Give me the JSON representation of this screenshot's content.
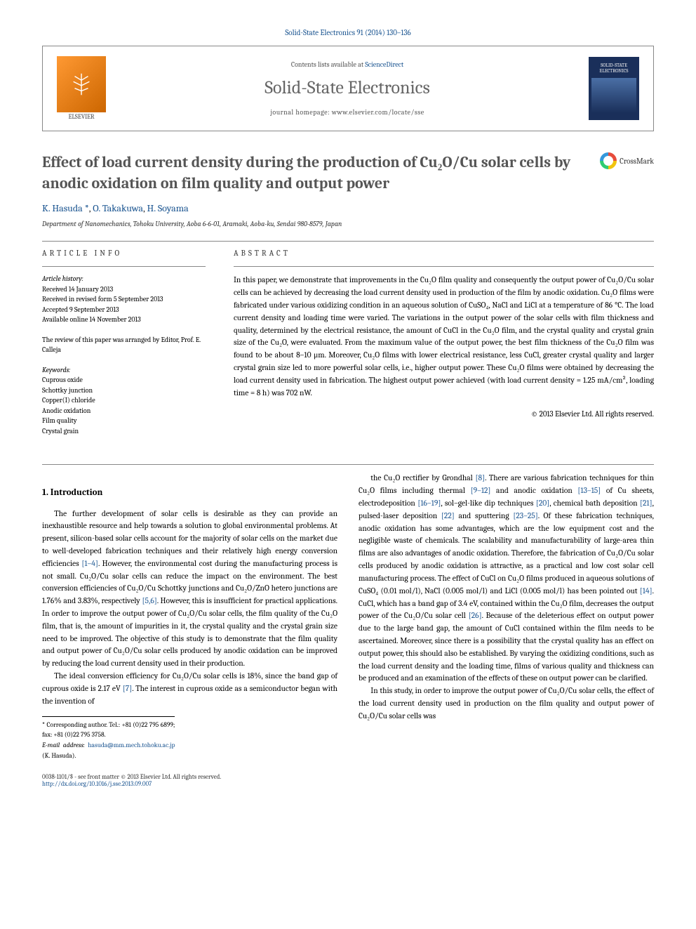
{
  "header": {
    "citation": "Solid-State Electronics 91 (2014) 130–136",
    "contents_available": "Contents lists available at",
    "sciencedirect": "ScienceDirect",
    "journal": "Solid-State Electronics",
    "homepage_label": "journal homepage:",
    "homepage_url": "www.elsevier.com/locate/sse",
    "publisher": "ELSEVIER",
    "cover_title": "SOLID-STATE ELECTRONICS"
  },
  "title": "Effect of load current density during the production of Cu₂O/Cu solar cells by anodic oxidation on film quality and output power",
  "crossmark": "CrossMark",
  "authors_html": "K. Hasuda *, O. Takakuwa, H. Soyama",
  "authors": {
    "a1": "K. Hasuda",
    "star": "*",
    "sep1": ", ",
    "a2": "O. Takakuwa",
    "sep2": ", ",
    "a3": "H. Soyama"
  },
  "affiliation": "Department of Nanomechanics, Tohoku University, Aoba 6-6-01, Aramaki, Aoba-ku, Sendai 980-8579, Japan",
  "article_info": {
    "label": "ARTICLE INFO",
    "history_hdr": "Article history:",
    "history": [
      "Received 14 January 2013",
      "Received in revised form 5 September 2013",
      "Accepted 9 September 2013",
      "Available online 14 November 2013"
    ],
    "review": "The review of this paper was arranged by Editor, Prof. E. Calleja",
    "keywords_hdr": "Keywords:",
    "keywords": [
      "Cuprous oxide",
      "Schottky junction",
      "Copper(I) chloride",
      "Anodic oxidation",
      "Film quality",
      "Crystal grain"
    ]
  },
  "abstract": {
    "label": "ABSTRACT",
    "text": "In this paper, we demonstrate that improvements in the Cu₂O film quality and consequently the output power of Cu₂O/Cu solar cells can be achieved by decreasing the load current density used in production of the film by anodic oxidation. Cu₂O films were fabricated under various oxidizing condition in an aqueous solution of CuSO₄, NaCl and LiCl at a temperature of 86 °C. The load current density and loading time were varied. The variations in the output power of the solar cells with film thickness and quality, determined by the electrical resistance, the amount of CuCl in the Cu₂O film, and the crystal quality and crystal grain size of the Cu₂O, were evaluated. From the maximum value of the output power, the best film thickness of the Cu₂O film was found to be about 8–10 μm. Moreover, Cu₂O films with lower electrical resistance, less CuCl, greater crystal quality and larger crystal grain size led to more powerful solar cells, i.e., higher output power. These Cu₂O films were obtained by decreasing the load current density used in fabrication. The highest output power achieved (with load current density = 1.25 mA/cm², loading time = 8 h) was 702 nW.",
    "copyright": "© 2013 Elsevier Ltd. All rights reserved."
  },
  "section1": {
    "heading": "1. Introduction",
    "p1": "The further development of solar cells is desirable as they can provide an inexhaustible resource and help towards a solution to global environmental problems. At present, silicon-based solar cells account for the majority of solar cells on the market due to well-developed fabrication techniques and their relatively high energy conversion efficiencies [1–4]. However, the environmental cost during the manufacturing process is not small. Cu₂O/Cu solar cells can reduce the impact on the environment. The best conversion efficiencies of Cu₂O/Cu Schottky junctions and Cu₂O/ZnO hetero junctions are 1.76% and 3.83%, respectively [5,6]. However, this is insufficient for practical applications. In order to improve the output power of Cu₂O/Cu solar cells, the film quality of the Cu₂O film, that is, the amount of impurities in it, the crystal quality and the crystal grain size need to be improved. The objective of this study is to demonstrate that the film quality and output power of Cu₂O/Cu solar cells produced by anodic oxidation can be improved by reducing the load current density used in their production.",
    "p2": "The ideal conversion efficiency for Cu₂O/Cu solar cells is 18%, since the band gap of cuprous oxide is 2.17 eV [7]. The interest in cuprous oxide as a semiconductor began with the invention of",
    "p3": "the Cu₂O rectifier by Grondhal [8]. There are various fabrication techniques for thin Cu₂O films including thermal [9–12] and anodic oxidation [13–15] of Cu sheets, electrodeposition [16–19], sol–gel-like dip techniques [20], chemical bath deposition [21], pulsed-laser deposition [22] and sputtering [23–25]. Of these fabrication techniques, anodic oxidation has some advantages, which are the low equipment cost and the negligible waste of chemicals. The scalability and manufacturability of large-area thin films are also advantages of anodic oxidation. Therefore, the fabrication of Cu₂O/Cu solar cells produced by anodic oxidation is attractive, as a practical and low cost solar cell manufacturing process. The effect of CuCl on Cu₂O films produced in aqueous solutions of CuSO₄ (0.01 mol/l), NaCl (0.005 mol/l) and LiCl (0.005 mol/l) has been pointed out [14]. CuCl, which has a band gap of 3.4 eV, contained within the Cu₂O film, decreases the output power of the Cu₂O/Cu solar cell [26]. Because of the deleterious effect on output power due to the large band gap, the amount of CuCl contained within the film needs to be ascertained. Moreover, since there is a possibility that the crystal quality has an effect on output power, this should also be established. By varying the oxidizing conditions, such as the load current density and the loading time, films of various quality and thickness can be produced and an examination of the effects of these on output power can be clarified.",
    "p4": "In this study, in order to improve the output power of Cu₂O/Cu solar cells, the effect of the load current density used in production on the film quality and output power of Cu₂O/Cu solar cells was"
  },
  "footnote": {
    "corr": "* Corresponding author. Tel.: +81 (0)22 795 6899; fax: +81 (0)22 795 3758.",
    "email_label": "E-mail address:",
    "email": "hasuda@mm.mech.tohoku.ac.jp",
    "email_suffix": "(K. Hasuda)."
  },
  "footer": {
    "issn": "0038-1101/$ - see front matter © 2013 Elsevier Ltd. All rights reserved.",
    "doi": "http://dx.doi.org/10.1016/j.sse.2013.09.007"
  },
  "colors": {
    "link": "#1a5490",
    "text": "#000000",
    "grey": "#555555"
  }
}
